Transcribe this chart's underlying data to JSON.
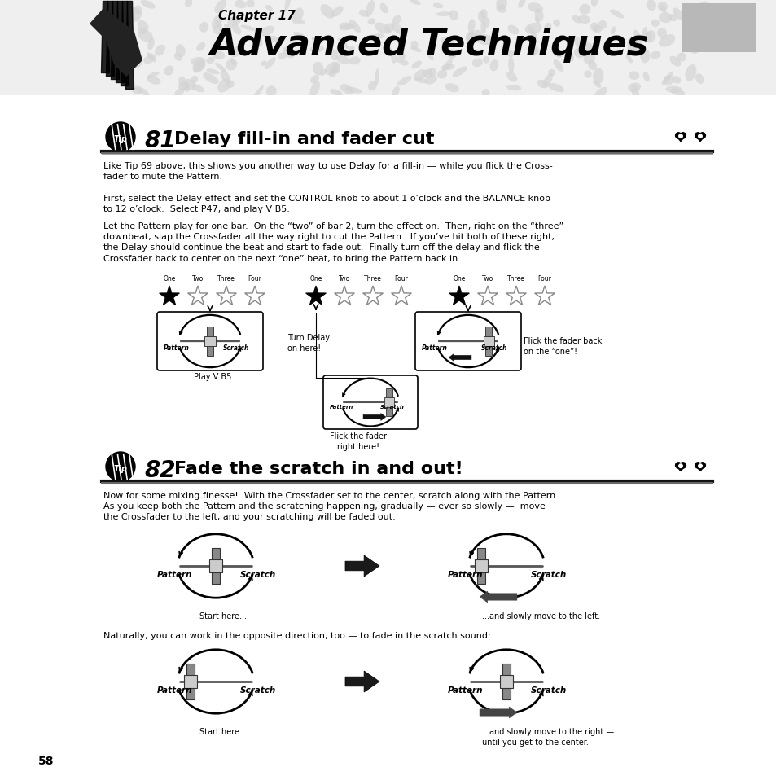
{
  "page_bg": "#ffffff",
  "chapter_label": "Chapter 17",
  "chapter_title": "Advanced Techniques",
  "tip81_num": "81",
  "tip81_title": "Delay fill-in and fader cut",
  "tip82_num": "82",
  "tip82_title": "Fade the scratch in and out!",
  "tip81_body1": "Like Tip 69 above, this shows you another way to use Delay for a fill-in — while you flick the Cross-\nfader to mute the Pattern.",
  "tip81_body2": "First, select the Delay effect and set the CONTROL knob to about 1 o’clock and the BALANCE knob\nto 12 o’clock.  Select P47, and play V B5.",
  "tip81_body3": "Let the Pattern play for one bar.  On the “two” of bar 2, turn the effect on.  Then, right on the “three”\ndownbeat, slap the Crossfader all the way right to cut the Pattern.  If you’ve hit both of these right,\nthe Delay should continue the beat and start to fade out.  Finally turn off the delay and flick the\nCrossfader back to center on the next “one” beat, to bring the Pattern back in.",
  "tip82_body1": "Now for some mixing finesse!  With the Crossfader set to the center, scratch along with the Pattern.\nAs you keep both the Pattern and the scratching happening, gradually — ever so slowly —  move\nthe Crossfader to the left, and your scratching will be faded out.",
  "tip82_body2": "Naturally, you can work in the opposite direction, too — to fade in the scratch sound:",
  "beat_labels": [
    "One",
    "Two",
    "Three",
    "Four"
  ],
  "caption_play": "Play V B5",
  "caption_turn_delay": "Turn Delay\non here!",
  "caption_flick_fader": "Flick the fader\nright here!",
  "caption_flick_back": "Flick the fader back\non the “one”!",
  "caption_start1": "Start here...",
  "caption_move_left": "...and slowly move to the left.",
  "caption_start2": "Start here...",
  "caption_move_right": "...and slowly move to the right —\nuntil you get to the center.",
  "page_number": "58"
}
